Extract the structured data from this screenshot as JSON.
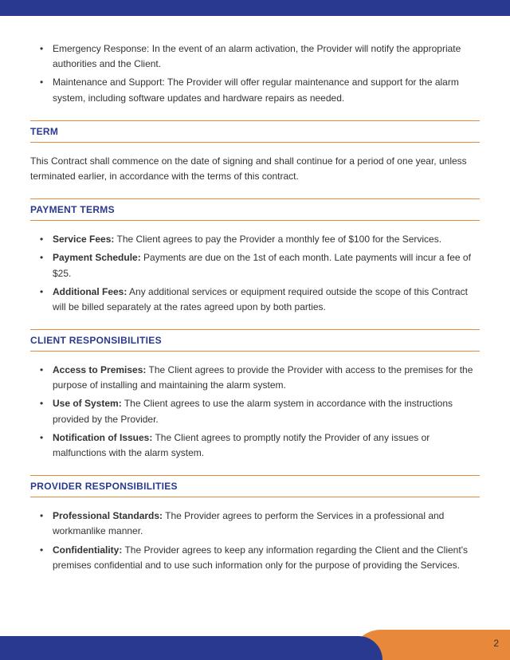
{
  "colors": {
    "heading": "#2a3990",
    "divider": "#e8883a",
    "text": "#333333",
    "header_bar": "#2a3990",
    "footer_blue": "#2a3990",
    "footer_orange": "#e8883a",
    "bg": "#ffffff"
  },
  "typography": {
    "body_fontsize": 12,
    "heading_fontsize": 12,
    "heading_weight": "bold"
  },
  "intro_bullets": [
    {
      "label": "Emergency Response:",
      "text": " In the event of an alarm activation, the Provider will notify the appropriate authorities and the Client."
    },
    {
      "label": "Maintenance and Support:",
      "text": " The Provider will offer regular maintenance and support for the alarm system, including software updates and hardware repairs as needed."
    }
  ],
  "sections": [
    {
      "title": "TERM",
      "type": "para",
      "para": "This Contract shall commence on the date of signing and shall continue for a period of one year, unless terminated earlier, in accordance with the terms of this contract."
    },
    {
      "title": "PAYMENT TERMS",
      "type": "list",
      "items": [
        {
          "label": "Service Fees:",
          "text": " The Client agrees to pay the Provider a monthly fee of $100 for the Services."
        },
        {
          "label": "Payment Schedule:",
          "text": " Payments are due on the 1st of each month. Late payments will incur a fee of $25."
        },
        {
          "label": "Additional Fees:",
          "text": " Any additional services or equipment required outside the scope of this Contract will be billed separately at the rates agreed upon by both parties."
        }
      ]
    },
    {
      "title": "CLIENT RESPONSIBILITIES",
      "type": "list",
      "items": [
        {
          "label": "Access to Premises:",
          "text": " The Client agrees to provide the Provider with access to the premises for the purpose of installing and maintaining the alarm system."
        },
        {
          "label": "Use of System:",
          "text": " The Client agrees to use the alarm system in accordance with the instructions provided by the Provider."
        },
        {
          "label": "Notification of Issues:",
          "text": " The Client agrees to promptly notify the Provider of any issues or malfunctions with the alarm system."
        }
      ]
    },
    {
      "title": "PROVIDER RESPONSIBILITIES",
      "type": "list",
      "items": [
        {
          "label": "Professional Standards:",
          "text": " The Provider agrees to perform the Services in a professional and workmanlike manner."
        },
        {
          "label": "Confidentiality:",
          "text": " The Provider agrees to keep any information regarding the Client and the Client's premises confidential and to use such information only for the purpose of providing the Services."
        }
      ]
    }
  ],
  "page_number": "2"
}
